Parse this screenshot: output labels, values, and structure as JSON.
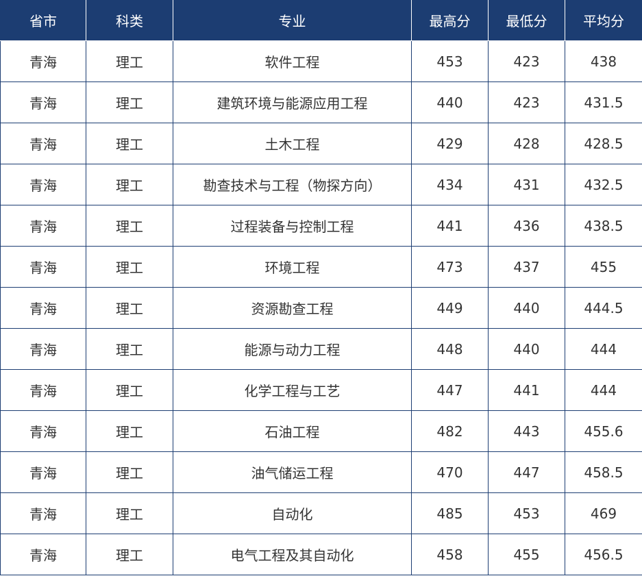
{
  "table": {
    "header": [
      "省市",
      "科类",
      "专业",
      "最高分",
      "最低分",
      "平均分"
    ],
    "rows": [
      [
        "青海",
        "理工",
        "软件工程",
        453,
        423,
        438
      ],
      [
        "青海",
        "理工",
        "建筑环境与能源应用工程",
        440,
        423,
        431.5
      ],
      [
        "青海",
        "理工",
        "土木工程",
        429,
        428,
        428.5
      ],
      [
        "青海",
        "理工",
        "勘查技术与工程（物探方向）",
        434,
        431,
        432.5
      ],
      [
        "青海",
        "理工",
        "过程装备与控制工程",
        441,
        436,
        438.5
      ],
      [
        "青海",
        "理工",
        "环境工程",
        473,
        437,
        455
      ],
      [
        "青海",
        "理工",
        "资源勘查工程",
        449,
        440,
        444.5
      ],
      [
        "青海",
        "理工",
        "能源与动力工程",
        448,
        440,
        444
      ],
      [
        "青海",
        "理工",
        "化学工程与工艺",
        447,
        441,
        444
      ],
      [
        "青海",
        "理工",
        "石油工程",
        482,
        443,
        455.6
      ],
      [
        "青海",
        "理工",
        "油气储运工程",
        470,
        447,
        458.5
      ],
      [
        "青海",
        "理工",
        "自动化",
        485,
        453,
        469
      ],
      [
        "青海",
        "理工",
        "电气工程及其自动化",
        458,
        455,
        456.5
      ]
    ]
  }
}
